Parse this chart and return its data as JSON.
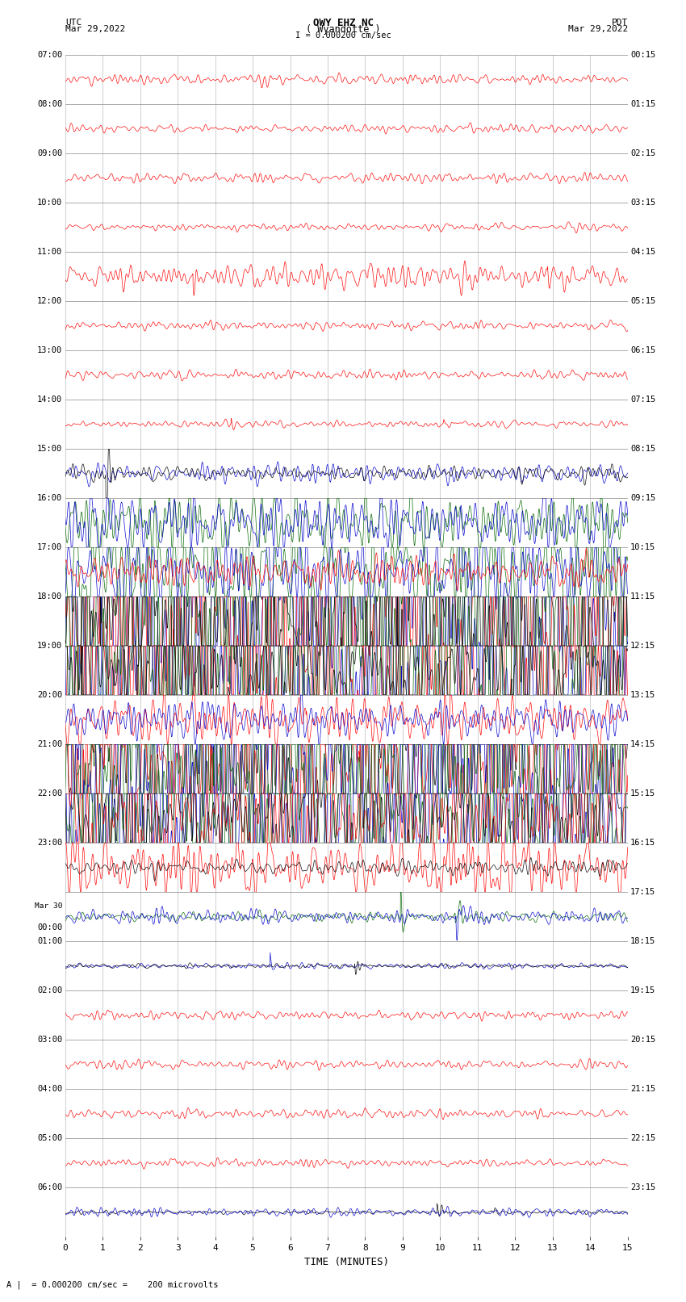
{
  "title_line1": "OWY EHZ NC",
  "title_line2": "( Wyandotte )",
  "scale_label": "I = 0.000200 cm/sec",
  "utc_label": "UTC",
  "utc_date": "Mar 29,2022",
  "pdt_label": "PDT",
  "pdt_date": "Mar 29,2022",
  "bottom_label": "A |  = 0.000200 cm/sec =    200 microvolts",
  "xlabel": "TIME (MINUTES)",
  "bg_color": "#ffffff",
  "grid_color": "#888888",
  "trace_colors": [
    "#000000",
    "#ff0000",
    "#0000cc",
    "#006600"
  ],
  "n_rows": 24,
  "utc_times": [
    "07:00",
    "08:00",
    "09:00",
    "10:00",
    "11:00",
    "12:00",
    "13:00",
    "14:00",
    "15:00",
    "16:00",
    "17:00",
    "18:00",
    "19:00",
    "20:00",
    "21:00",
    "22:00",
    "23:00",
    "Mar 30\n00:00",
    "01:00",
    "02:00",
    "03:00",
    "04:00",
    "05:00",
    "06:00"
  ],
  "pdt_times": [
    "00:15",
    "01:15",
    "02:15",
    "03:15",
    "04:15",
    "05:15",
    "06:15",
    "07:15",
    "08:15",
    "09:15",
    "10:15",
    "11:15",
    "12:15",
    "13:15",
    "14:15",
    "15:15",
    "16:15",
    "17:15",
    "18:15",
    "19:15",
    "20:15",
    "21:15",
    "22:15",
    "23:15"
  ],
  "figsize": [
    8.5,
    16.13
  ],
  "dpi": 100
}
